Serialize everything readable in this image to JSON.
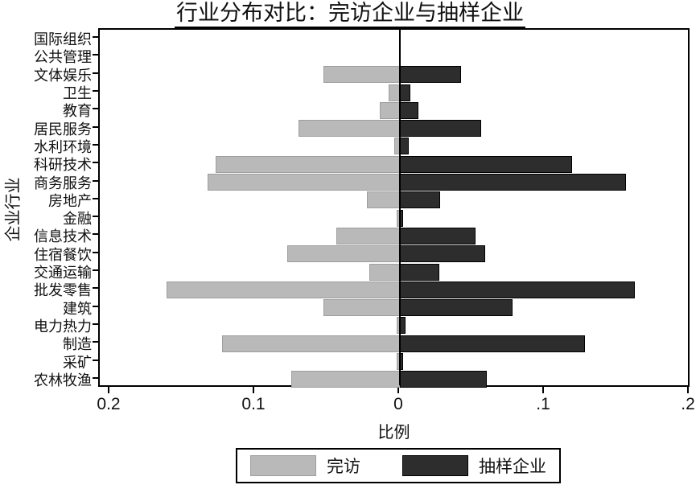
{
  "chart_data": {
    "type": "bar",
    "orientation": "horizontal-diverging",
    "title": "行业分布对比：完访企业与抽样企业",
    "xlabel": "比例",
    "ylabel": "企业行业",
    "grid": false,
    "legend_position": "bottom-center",
    "xlim": [
      -0.207,
      0.202
    ],
    "x_ticks": [
      {
        "label": "0.2",
        "value": -0.2
      },
      {
        "label": "0.1",
        "value": -0.1
      },
      {
        "label": "0",
        "value": 0
      },
      {
        "label": ".1",
        "value": 0.1
      },
      {
        "label": ".2",
        "value": 0.2
      }
    ],
    "categories": [
      "国际组织",
      "公共管理",
      "文体娱乐",
      "卫生",
      "教育",
      "居民服务",
      "水利环境",
      "科研技术",
      "商务服务",
      "房地产",
      "金融",
      "信息技术",
      "住宿餐饮",
      "交通运输",
      "批发零售",
      "建筑",
      "电力热力",
      "制造",
      "采矿",
      "农林牧渔"
    ],
    "series": [
      {
        "name": "完访",
        "side": "left",
        "color": "#b9b9b9",
        "values": [
          0,
          0,
          0.053,
          0.008,
          0.014,
          0.07,
          0.004,
          0.127,
          0.133,
          0.023,
          0.002,
          0.044,
          0.078,
          0.021,
          0.161,
          0.053,
          0.002,
          0.123,
          0.002,
          0.075
        ]
      },
      {
        "name": "抽样企业",
        "side": "right",
        "color": "#2d2d2d",
        "values": [
          0,
          0,
          0.042,
          0.007,
          0.013,
          0.056,
          0.006,
          0.119,
          0.156,
          0.028,
          0.002,
          0.052,
          0.059,
          0.027,
          0.162,
          0.078,
          0.004,
          0.128,
          0.002,
          0.06
        ]
      }
    ]
  },
  "colors": {
    "survey_bar": "#b9b9b9",
    "sample_bar": "#2d2d2d",
    "axis": "#000000",
    "background": "#ffffff"
  }
}
